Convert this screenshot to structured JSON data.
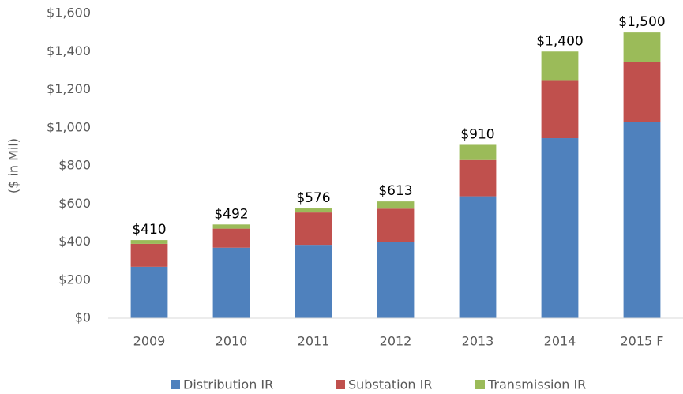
{
  "chart_data": {
    "type": "stacked_bar",
    "ylabel": "($ in Mil)",
    "categories": [
      "2009",
      "2010",
      "2011",
      "2012",
      "2013",
      "2014",
      "2015 F"
    ],
    "series": [
      {
        "name": "Distribution IR",
        "color": "#4f81bd",
        "values": [
          270,
          370,
          385,
          400,
          640,
          945,
          1030
        ]
      },
      {
        "name": "Substation IR",
        "color": "#c0504d",
        "values": [
          120,
          100,
          170,
          175,
          190,
          305,
          315
        ]
      },
      {
        "name": "Transmission IR",
        "color": "#9bbb59",
        "values": [
          20,
          22,
          21,
          38,
          80,
          150,
          155
        ]
      }
    ],
    "totals": {
      "values": [
        410,
        492,
        576,
        613,
        910,
        1400,
        1500
      ],
      "value_labels": [
        "$410",
        "$492",
        "$576",
        "$613",
        "$910",
        "$1,400",
        "$1,500"
      ]
    },
    "ylim": [
      0,
      1600
    ],
    "yticks": [
      {
        "value": 0,
        "label": "$0"
      },
      {
        "value": 200,
        "label": "$200"
      },
      {
        "value": 400,
        "label": "$400"
      },
      {
        "value": 600,
        "label": "$600"
      },
      {
        "value": 800,
        "label": "$800"
      },
      {
        "value": 1000,
        "label": "$1,000"
      },
      {
        "value": 1200,
        "label": "$1,200"
      },
      {
        "value": 1400,
        "label": "$1,400"
      },
      {
        "value": 1600,
        "label": "$1,600"
      }
    ],
    "grid": false,
    "legend": "bottom"
  }
}
